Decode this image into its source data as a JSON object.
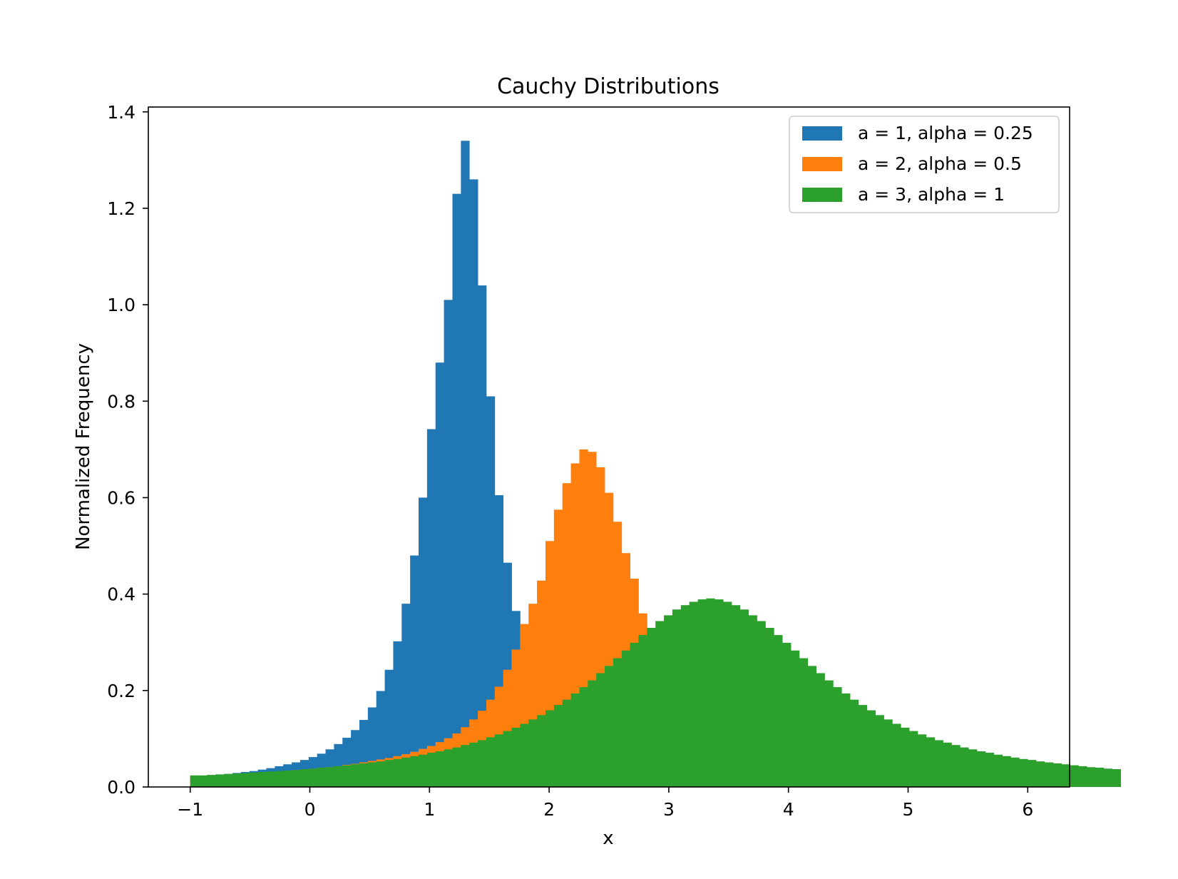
{
  "chart_data": {
    "type": "histogram",
    "title": "Cauchy Distributions",
    "xlabel": "x",
    "ylabel": "Normalized Frequency",
    "xlim": [
      -1.35,
      6.35
    ],
    "ylim": [
      0,
      1.41
    ],
    "xticks": [
      -1,
      0,
      1,
      2,
      3,
      4,
      5,
      6
    ],
    "xtick_labels": [
      "−1",
      "0",
      "1",
      "2",
      "3",
      "4",
      "5",
      "6"
    ],
    "yticks": [
      0,
      0.2,
      0.4,
      0.6,
      0.8,
      1.0,
      1.2,
      1.4
    ],
    "ytick_labels": [
      "0.0",
      "0.2",
      "0.4",
      "0.6",
      "0.8",
      "1.0",
      "1.2",
      "1.4"
    ],
    "grid": false,
    "legend_position": "top-right",
    "series": [
      {
        "name": "a = 1, alpha = 0.25",
        "color": "#1f77b4",
        "bin_start": -1.0,
        "bin_width": 0.0707,
        "values": [
          0.022,
          0.023,
          0.024,
          0.026,
          0.027,
          0.029,
          0.031,
          0.033,
          0.036,
          0.039,
          0.043,
          0.047,
          0.051,
          0.056,
          0.062,
          0.069,
          0.078,
          0.089,
          0.102,
          0.118,
          0.139,
          0.165,
          0.199,
          0.243,
          0.302,
          0.38,
          0.48,
          0.6,
          0.742,
          0.88,
          1.01,
          1.23,
          1.34,
          1.26,
          1.04,
          0.81,
          0.605,
          0.465,
          0.365,
          0.29,
          0.24,
          0.2,
          0.17,
          0.145,
          0.125,
          0.11,
          0.097,
          0.087,
          0.078,
          0.071,
          0.065,
          0.06,
          0.055,
          0.051,
          0.047,
          0.044,
          0.041,
          0.039,
          0.037,
          0.035,
          0.033,
          0.031,
          0.03,
          0.029,
          0.028,
          0.027,
          0.026,
          0.025,
          0.024,
          0.023,
          0.022,
          0.022,
          0.021,
          0.02,
          0.02,
          0.019,
          0.019,
          0.018,
          0.018,
          0.017,
          0.017,
          0.016,
          0.016,
          0.016,
          0.015,
          0.015,
          0.015,
          0.014,
          0.014,
          0.014,
          0.013,
          0.013,
          0.013,
          0.013,
          0.012,
          0.012,
          0.012,
          0.012,
          0.011,
          0.011
        ]
      },
      {
        "name": "a = 2, alpha = 0.5",
        "color": "#ff7f0e",
        "bin_start": -1.0,
        "bin_width": 0.0707,
        "values": [
          0.022,
          0.023,
          0.024,
          0.025,
          0.026,
          0.027,
          0.028,
          0.029,
          0.03,
          0.031,
          0.032,
          0.033,
          0.035,
          0.036,
          0.038,
          0.04,
          0.041,
          0.043,
          0.046,
          0.048,
          0.051,
          0.054,
          0.057,
          0.06,
          0.064,
          0.068,
          0.073,
          0.079,
          0.085,
          0.093,
          0.101,
          0.111,
          0.124,
          0.14,
          0.158,
          0.181,
          0.208,
          0.243,
          0.285,
          0.338,
          0.38,
          0.428,
          0.51,
          0.575,
          0.63,
          0.671,
          0.7,
          0.695,
          0.663,
          0.61,
          0.55,
          0.485,
          0.432,
          0.36,
          0.3,
          0.258,
          0.22,
          0.193,
          0.17,
          0.15,
          0.134,
          0.12,
          0.109,
          0.099,
          0.09,
          0.083,
          0.076,
          0.071,
          0.066,
          0.061,
          0.057,
          0.054,
          0.051,
          0.048,
          0.045,
          0.043,
          0.041,
          0.039,
          0.037,
          0.035,
          0.034,
          0.032,
          0.031,
          0.03,
          0.029,
          0.028,
          0.027,
          0.026,
          0.025,
          0.024,
          0.023,
          0.023,
          0.022,
          0.021,
          0.021,
          0.02,
          0.019,
          0.019,
          0.018,
          0.018
        ]
      },
      {
        "name": "a = 3, alpha = 1",
        "color": "#2ca02c",
        "bin_start": -1.0,
        "bin_width": 0.0707,
        "values": [
          0.024,
          0.024,
          0.025,
          0.026,
          0.027,
          0.028,
          0.029,
          0.03,
          0.031,
          0.032,
          0.033,
          0.034,
          0.035,
          0.037,
          0.038,
          0.04,
          0.041,
          0.043,
          0.045,
          0.047,
          0.049,
          0.051,
          0.053,
          0.056,
          0.058,
          0.061,
          0.064,
          0.067,
          0.071,
          0.074,
          0.078,
          0.082,
          0.087,
          0.092,
          0.097,
          0.103,
          0.109,
          0.116,
          0.123,
          0.131,
          0.14,
          0.149,
          0.159,
          0.17,
          0.181,
          0.194,
          0.207,
          0.221,
          0.236,
          0.251,
          0.267,
          0.283,
          0.299,
          0.315,
          0.33,
          0.344,
          0.356,
          0.368,
          0.377,
          0.384,
          0.389,
          0.391,
          0.389,
          0.384,
          0.377,
          0.368,
          0.356,
          0.344,
          0.33,
          0.315,
          0.299,
          0.283,
          0.267,
          0.251,
          0.236,
          0.221,
          0.207,
          0.194,
          0.181,
          0.17,
          0.159,
          0.149,
          0.14,
          0.131,
          0.123,
          0.116,
          0.109,
          0.103,
          0.097,
          0.092,
          0.087,
          0.082,
          0.078,
          0.074,
          0.071,
          0.067,
          0.064,
          0.061,
          0.058,
          0.056,
          0.053,
          0.051,
          0.049,
          0.047,
          0.045,
          0.043,
          0.041,
          0.04,
          0.038,
          0.037
        ]
      }
    ]
  }
}
